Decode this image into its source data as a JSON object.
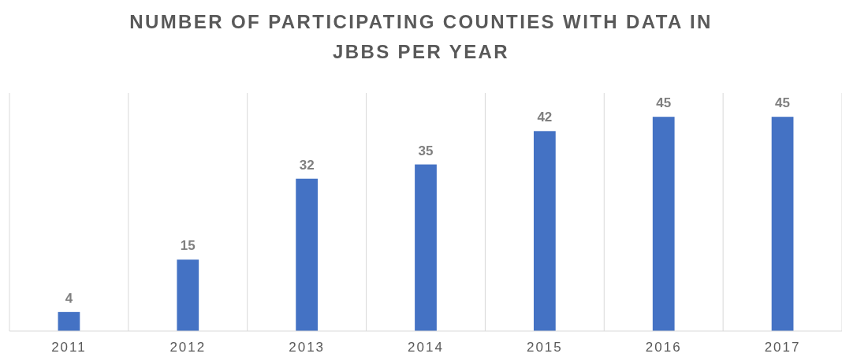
{
  "chart_data": {
    "type": "bar",
    "title": "NUMBER OF PARTICIPATING COUNTIES WITH DATA IN JBBS PER YEAR",
    "categories": [
      "2011",
      "2012",
      "2013",
      "2014",
      "2015",
      "2016",
      "2017"
    ],
    "values": [
      4,
      15,
      32,
      35,
      42,
      45,
      45
    ],
    "color": "#4472c4",
    "ylim": [
      0,
      50
    ],
    "tick_labels": "x",
    "grid": "x",
    "data_labels": true
  }
}
